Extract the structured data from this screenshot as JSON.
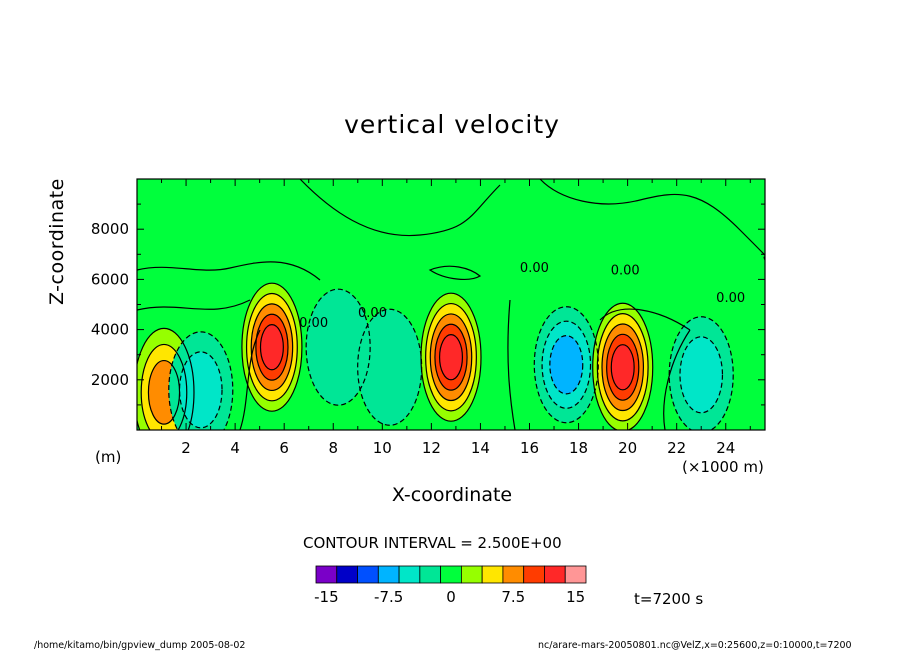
{
  "chart_data": {
    "type": "heatmap",
    "title": "vertical velocity",
    "xlabel": "X-coordinate",
    "ylabel": "Z-coordinate",
    "x_unit": "(×1000 m)",
    "y_unit": "(m)",
    "xlim": [
      0,
      25.6
    ],
    "ylim": [
      0,
      10000
    ],
    "x_ticks": [
      2,
      4,
      6,
      8,
      10,
      12,
      14,
      16,
      18,
      20,
      22,
      24
    ],
    "y_ticks": [
      2000,
      4000,
      6000,
      8000
    ],
    "x_tick_labels": [
      "2",
      "4",
      "6",
      "8",
      "10",
      "12",
      "14",
      "16",
      "18",
      "20",
      "22",
      "24"
    ],
    "y_tick_labels": [
      "2000",
      "4000",
      "6000",
      "8000"
    ],
    "contour_interval": "CONTOUR INTERVAL = 2.500E+00",
    "contour_labels": [
      {
        "text": "0.00",
        "x": 7.2,
        "z": 4100
      },
      {
        "text": "0.00",
        "x": 9.6,
        "z": 4500
      },
      {
        "text": "0.00",
        "x": 16.2,
        "z": 6300
      },
      {
        "text": "0.00",
        "x": 19.9,
        "z": 6200
      },
      {
        "text": "0.00",
        "x": 24.2,
        "z": 5100
      }
    ],
    "colorbar": {
      "colors": [
        "#7a00c8",
        "#0000c8",
        "#0050ff",
        "#00b4ff",
        "#00e6c8",
        "#00e696",
        "#00ff3c",
        "#96ff00",
        "#ffe600",
        "#ff8c00",
        "#ff3c00",
        "#ff2828",
        "#ff9696"
      ],
      "labels": [
        "-15",
        "-7.5",
        "0",
        "7.5",
        "15"
      ],
      "label_values": [
        -15,
        -7.5,
        0,
        7.5,
        15
      ],
      "min": -16.25,
      "max": 16.25
    },
    "time": "t=7200 s",
    "features": [
      {
        "sign": "positive",
        "x": 1.1,
        "z": 1500,
        "peak": 7.5
      },
      {
        "sign": "negative",
        "x": 2.6,
        "z": 1600,
        "peak": -5
      },
      {
        "sign": "positive",
        "x": 5.5,
        "z": 3300,
        "peak": 12.5
      },
      {
        "sign": "negative",
        "x": 8.2,
        "z": 3300,
        "peak": -2.5
      },
      {
        "sign": "negative",
        "x": 10.3,
        "z": 2500,
        "peak": -2.5
      },
      {
        "sign": "positive",
        "x": 12.8,
        "z": 2900,
        "peak": 12.5
      },
      {
        "sign": "negative",
        "x": 17.5,
        "z": 2600,
        "peak": -7.5
      },
      {
        "sign": "positive",
        "x": 19.8,
        "z": 2500,
        "peak": 12.5
      },
      {
        "sign": "negative",
        "x": 23.0,
        "z": 2200,
        "peak": -5
      }
    ],
    "grid": false
  },
  "footer_left": "/home/kitamo/bin/gpview_dump   2005-08-02",
  "footer_right": "nc/arare-mars-20050801.nc@VelZ,x=0:25600,z=0:10000,t=7200"
}
